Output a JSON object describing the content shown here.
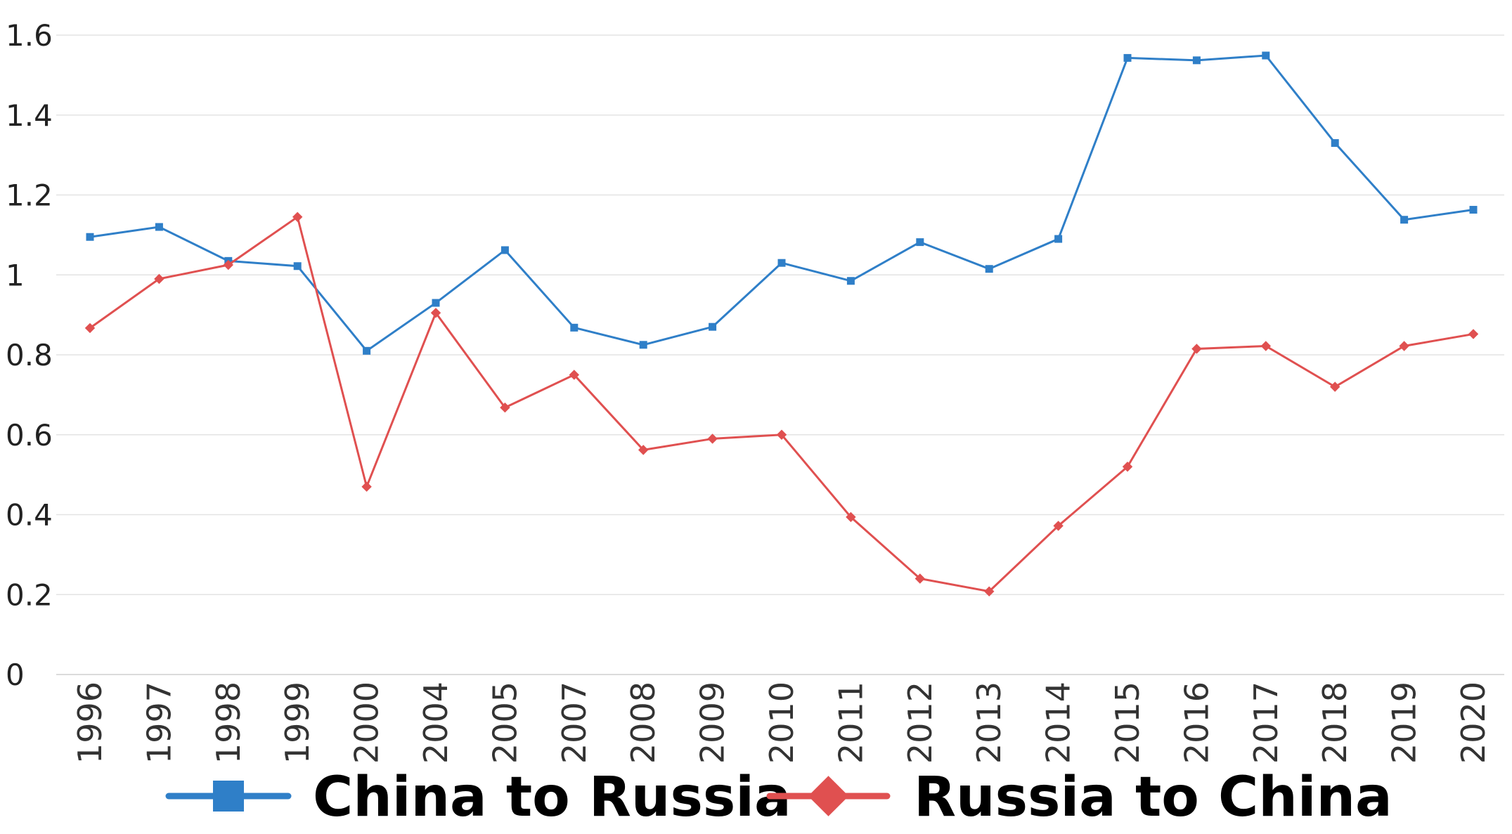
{
  "chart_data": {
    "type": "line",
    "title": "",
    "xlabel": "",
    "ylabel": "",
    "ylim": [
      0,
      1.6
    ],
    "yticks": [
      "0",
      "0.2",
      "0.4",
      "0.6",
      "0.8",
      "1",
      "1.2",
      "1.4",
      "1.6"
    ],
    "grid": true,
    "legend": "bottom",
    "categories": [
      "1996",
      "1997",
      "1998",
      "1999",
      "2000",
      "2004",
      "2005",
      "2007",
      "2008",
      "2009",
      "2010",
      "2011",
      "2012",
      "2013",
      "2014",
      "2015",
      "2016",
      "2017",
      "2018",
      "2019",
      "2020"
    ],
    "series": [
      {
        "name": "China to Russia",
        "color": "#2f7fc8",
        "marker": "square",
        "values": [
          1.095,
          1.12,
          1.035,
          1.022,
          0.81,
          0.93,
          1.062,
          0.868,
          0.825,
          0.87,
          1.03,
          0.985,
          1.082,
          1.015,
          1.09,
          1.543,
          1.537,
          1.549,
          1.33,
          1.138,
          1.163
        ]
      },
      {
        "name": "Russia to China",
        "color": "#e05050",
        "marker": "diamond",
        "values": [
          0.867,
          0.99,
          1.025,
          1.145,
          0.47,
          0.905,
          0.668,
          0.75,
          0.562,
          0.59,
          0.6,
          0.394,
          0.24,
          0.208,
          0.372,
          0.52,
          0.815,
          0.822,
          0.72,
          0.822,
          0.852
        ]
      }
    ]
  }
}
